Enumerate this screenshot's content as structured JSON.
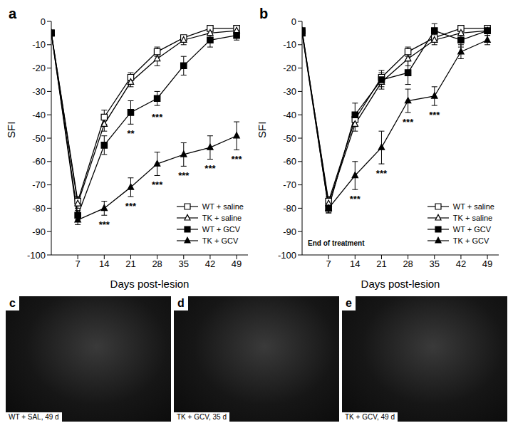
{
  "chart_data": [
    {
      "type": "line",
      "title": "a",
      "x_label": "Days post-lesion",
      "y_label": "SFI",
      "x": [
        0,
        7,
        14,
        21,
        28,
        35,
        42,
        49
      ],
      "xlim": [
        0,
        52
      ],
      "xticks": [
        7,
        14,
        21,
        28,
        35,
        42,
        49
      ],
      "ylim": [
        -100,
        0
      ],
      "yticks": [
        -100,
        -90,
        -80,
        -70,
        -60,
        -50,
        -40,
        -30,
        -20,
        -10,
        0
      ],
      "legend": "lower right",
      "series": [
        {
          "name": "WT + saline",
          "color": "#000000",
          "marker": "open_square",
          "values": [
            -5,
            -77,
            -41,
            -24,
            -13,
            -7,
            -3,
            -3
          ],
          "errors": [
            0,
            2,
            3,
            2,
            2,
            1,
            1,
            1
          ]
        },
        {
          "name": "TK + saline",
          "color": "#000000",
          "marker": "open_triangle",
          "values": [
            -5,
            -78,
            -44,
            -26,
            -16,
            -8,
            -5,
            -4
          ],
          "errors": [
            0,
            2,
            3,
            2,
            3,
            2,
            1,
            1
          ]
        },
        {
          "name": "WT + GCV",
          "color": "#000000",
          "marker": "square",
          "values": [
            -5,
            -83,
            -53,
            -39,
            -33,
            -19,
            -8,
            -6
          ],
          "errors": [
            0,
            2,
            4,
            5,
            3,
            4,
            3,
            2
          ]
        },
        {
          "name": "TK + GCV",
          "color": "#000000",
          "marker": "triangle",
          "values": [
            -5,
            -85,
            -80,
            -71,
            -61,
            -57,
            -54,
            -49
          ],
          "errors": [
            0,
            2,
            3,
            4,
            5,
            5,
            5,
            6
          ]
        }
      ],
      "annotations": [
        {
          "x": 21,
          "y": -48,
          "text": "**"
        },
        {
          "x": 28,
          "y": -41,
          "text": "***"
        },
        {
          "x": 14,
          "y": -87,
          "text": "***"
        },
        {
          "x": 21,
          "y": -79,
          "text": "***"
        },
        {
          "x": 28,
          "y": -70,
          "text": "***"
        },
        {
          "x": 35,
          "y": -66,
          "text": "***"
        },
        {
          "x": 42,
          "y": -63,
          "text": "***"
        },
        {
          "x": 49,
          "y": -59,
          "text": "***"
        }
      ]
    },
    {
      "type": "line",
      "title": "b",
      "x_label": "Days post-lesion",
      "y_label": "SFI",
      "x": [
        0,
        7,
        14,
        21,
        28,
        35,
        42,
        49
      ],
      "xlim": [
        0,
        52
      ],
      "xticks": [
        7,
        14,
        21,
        28,
        35,
        42,
        49
      ],
      "ylim": [
        -100,
        0
      ],
      "yticks": [
        -100,
        -90,
        -80,
        -70,
        -60,
        -50,
        -40,
        -30,
        -20,
        -10,
        0
      ],
      "legend": "lower right",
      "series": [
        {
          "name": "WT + saline",
          "color": "#000000",
          "marker": "open_square",
          "values": [
            -5,
            -77,
            -42,
            -24,
            -13,
            -7,
            -3,
            -3
          ],
          "errors": [
            0,
            2,
            3,
            2,
            2,
            1,
            1,
            1
          ]
        },
        {
          "name": "TK + saline",
          "color": "#000000",
          "marker": "open_triangle",
          "values": [
            -4,
            -78,
            -44,
            -26,
            -16,
            -8,
            -5,
            -4
          ],
          "errors": [
            0,
            2,
            3,
            2,
            3,
            2,
            1,
            1
          ]
        },
        {
          "name": "WT + GCV",
          "color": "#000000",
          "marker": "square",
          "values": [
            -4,
            -80,
            -40,
            -25,
            -22,
            -4,
            -8,
            -4
          ],
          "errors": [
            0,
            2,
            5,
            4,
            5,
            3,
            3,
            2
          ]
        },
        {
          "name": "TK + GCV",
          "color": "#000000",
          "marker": "triangle",
          "values": [
            -5,
            -80,
            -66,
            -54,
            -34,
            -32,
            -13,
            -8
          ],
          "errors": [
            0,
            2,
            6,
            7,
            5,
            4,
            3,
            2
          ]
        }
      ],
      "annotations": [
        {
          "x": 9,
          "y": -95,
          "text": "End of treatment"
        },
        {
          "x": 14,
          "y": -76,
          "text": "***"
        },
        {
          "x": 21,
          "y": -65,
          "text": "***"
        },
        {
          "x": 28,
          "y": -43,
          "text": "***"
        },
        {
          "x": 35,
          "y": -40,
          "text": "***"
        }
      ]
    }
  ],
  "images": [
    {
      "label": "c",
      "caption": "WT + SAL, 49 d"
    },
    {
      "label": "d",
      "caption": "TK + GCV, 35 d"
    },
    {
      "label": "e",
      "caption": "TK + GCV, 49 d"
    }
  ]
}
